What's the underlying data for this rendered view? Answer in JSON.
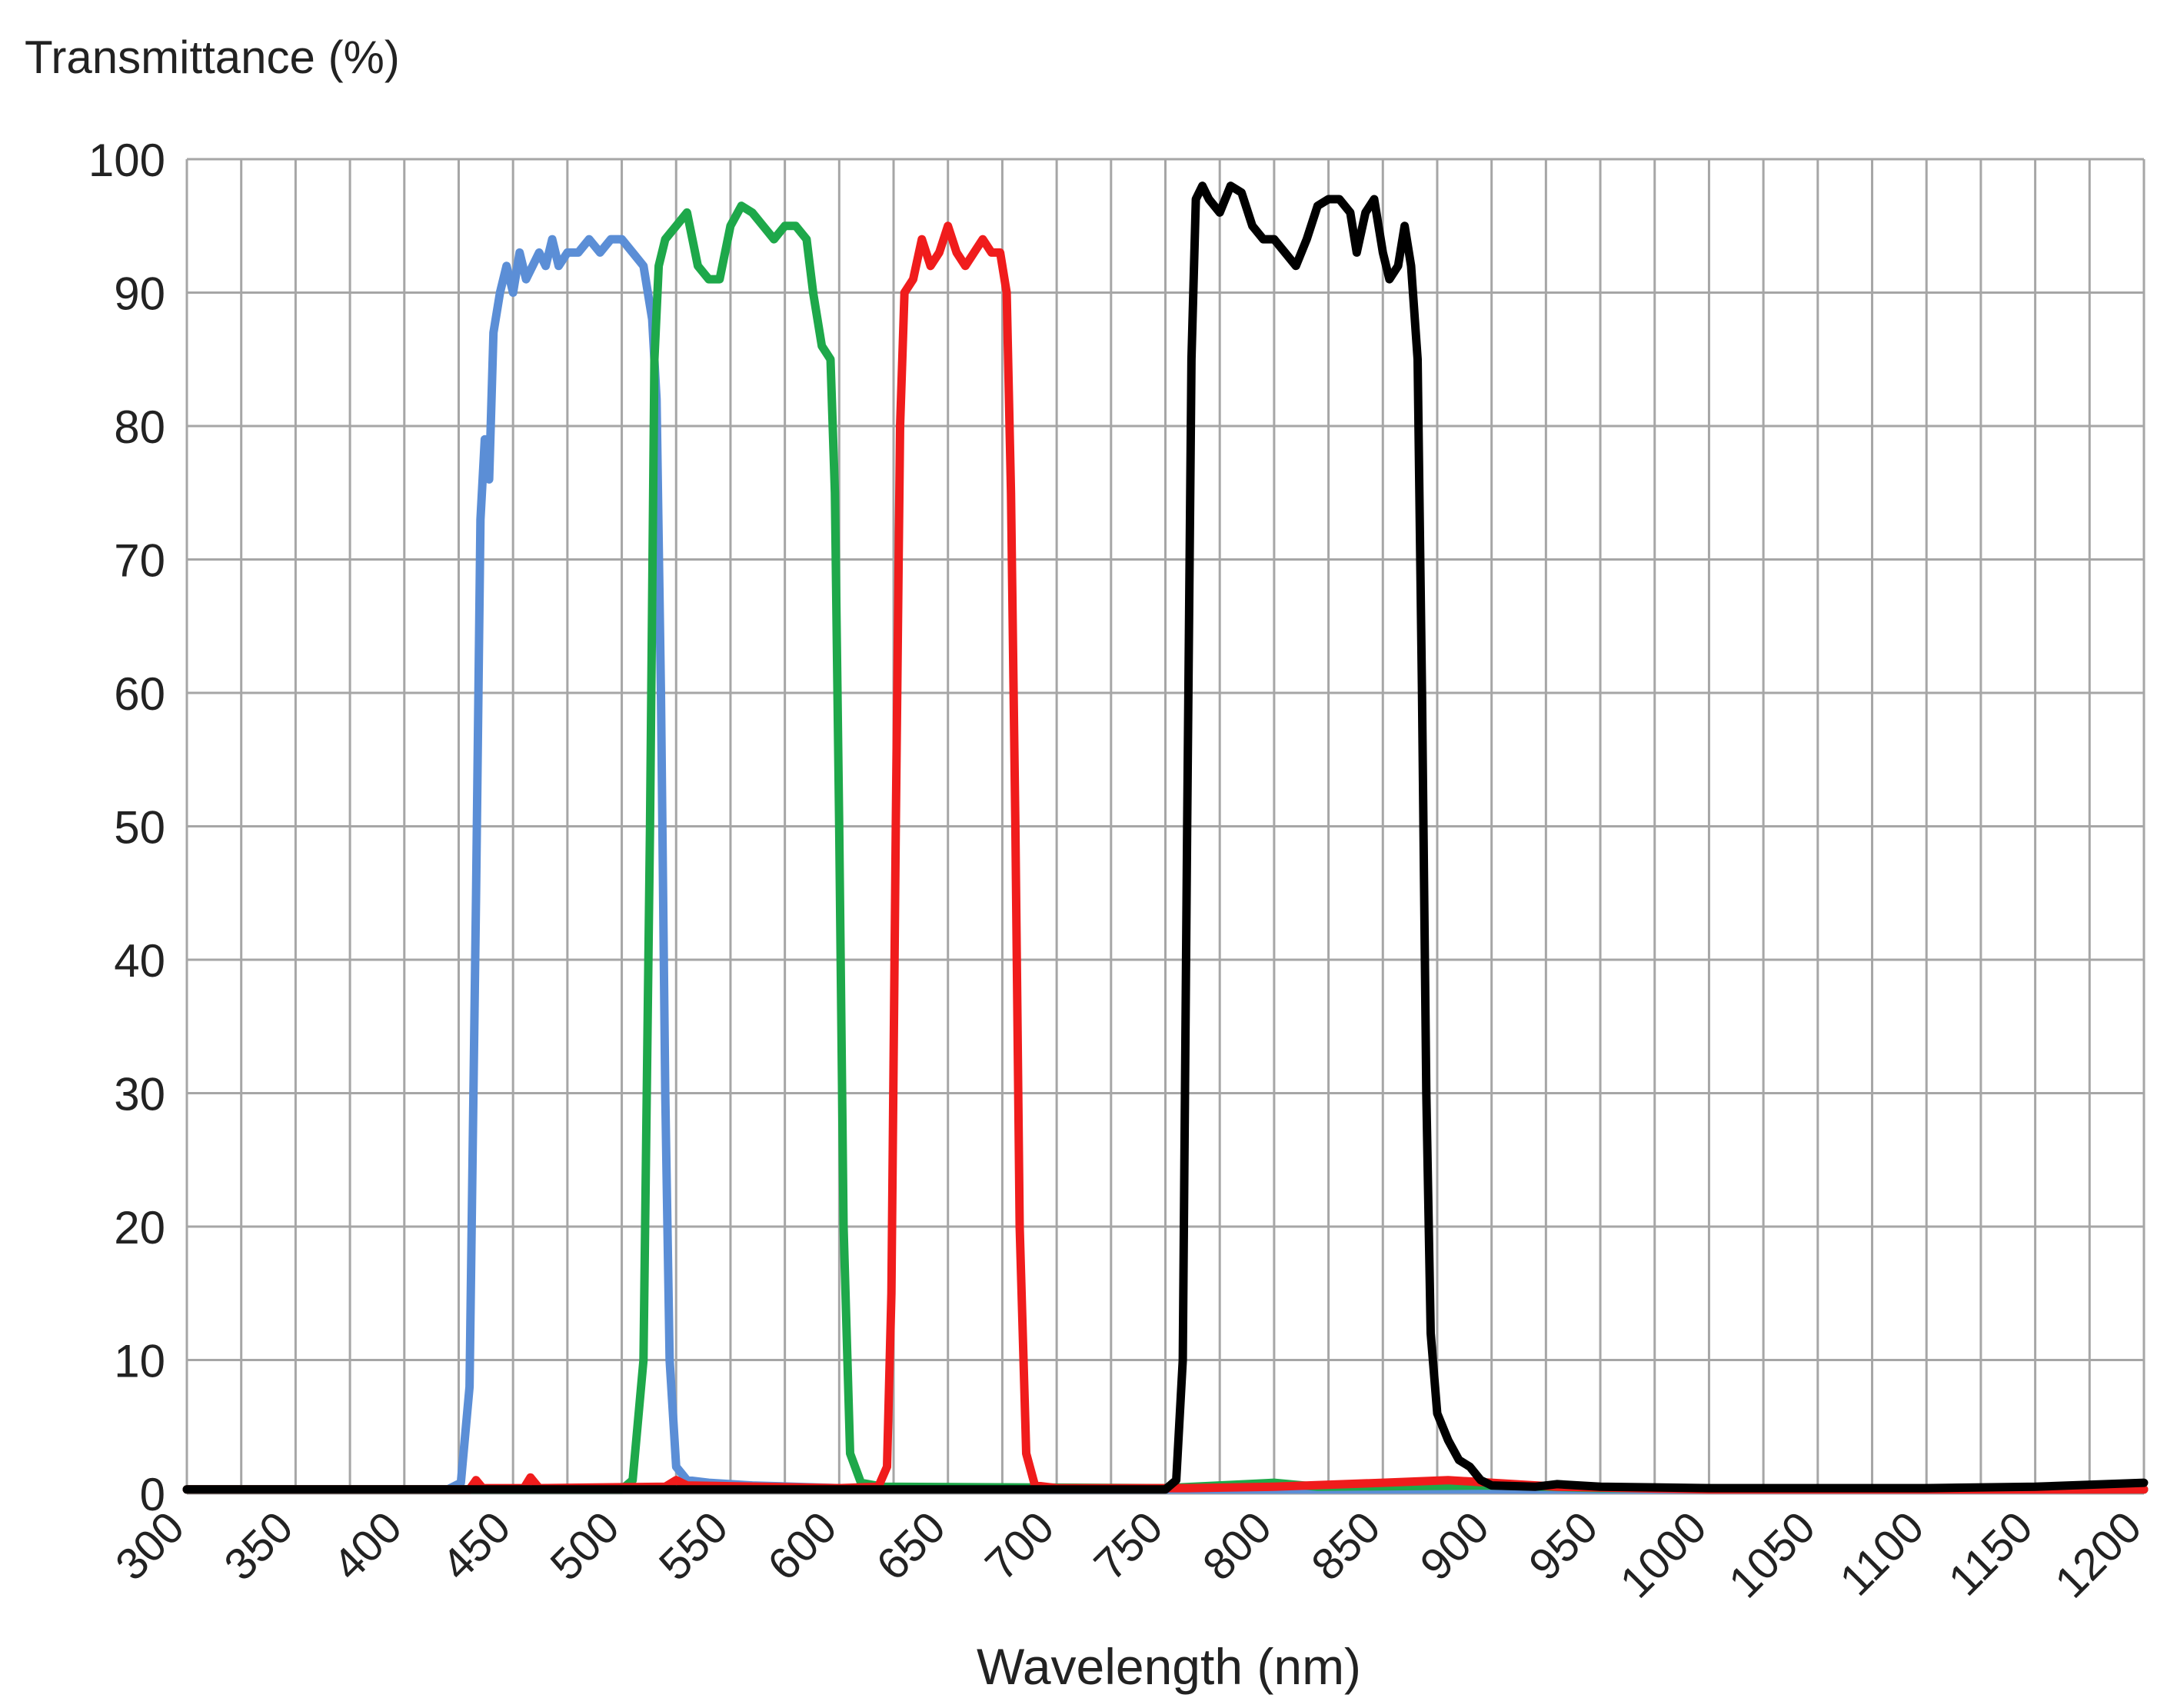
{
  "chart_data": {
    "type": "line",
    "title": "",
    "ylabel": "Transmittance (%)",
    "xlabel": "Wavelength (nm)",
    "xlim": [
      300,
      1200
    ],
    "ylim": [
      0,
      100
    ],
    "x_ticks": [
      300,
      350,
      400,
      450,
      500,
      550,
      600,
      650,
      700,
      750,
      800,
      850,
      900,
      950,
      1000,
      1050,
      1100,
      1150,
      1200
    ],
    "y_ticks": [
      0,
      10,
      20,
      30,
      40,
      50,
      60,
      70,
      80,
      90,
      100
    ],
    "grid": true,
    "legend": "none",
    "series": [
      {
        "color": "#5b8ed6",
        "points": [
          [
            300,
            0.3
          ],
          [
            420,
            0.3
          ],
          [
            426,
            0.8
          ],
          [
            430,
            8
          ],
          [
            433,
            45
          ],
          [
            435,
            73
          ],
          [
            437,
            79
          ],
          [
            439,
            76
          ],
          [
            441,
            87
          ],
          [
            444,
            90
          ],
          [
            447,
            92
          ],
          [
            450,
            90
          ],
          [
            453,
            93
          ],
          [
            456,
            91
          ],
          [
            459,
            92
          ],
          [
            462,
            93
          ],
          [
            465,
            92
          ],
          [
            468,
            94
          ],
          [
            471,
            92
          ],
          [
            475,
            93
          ],
          [
            480,
            93
          ],
          [
            485,
            94
          ],
          [
            490,
            93
          ],
          [
            495,
            94
          ],
          [
            500,
            94
          ],
          [
            505,
            93
          ],
          [
            510,
            92
          ],
          [
            514,
            88
          ],
          [
            516,
            82
          ],
          [
            518,
            60
          ],
          [
            520,
            30
          ],
          [
            522,
            10
          ],
          [
            525,
            2
          ],
          [
            530,
            1
          ],
          [
            540,
            0.8
          ],
          [
            560,
            0.6
          ],
          [
            600,
            0.4
          ],
          [
            700,
            0.3
          ],
          [
            1200,
            0.3
          ]
        ]
      },
      {
        "color": "#1ea84a",
        "points": [
          [
            300,
            0.3
          ],
          [
            500,
            0.3
          ],
          [
            505,
            1
          ],
          [
            510,
            10
          ],
          [
            513,
            50
          ],
          [
            515,
            85
          ],
          [
            517,
            92
          ],
          [
            520,
            94
          ],
          [
            525,
            95
          ],
          [
            530,
            96
          ],
          [
            535,
            92
          ],
          [
            540,
            91
          ],
          [
            545,
            91
          ],
          [
            550,
            95
          ],
          [
            555,
            96.5
          ],
          [
            560,
            96
          ],
          [
            565,
            95
          ],
          [
            570,
            94
          ],
          [
            575,
            95
          ],
          [
            580,
            95
          ],
          [
            585,
            94
          ],
          [
            588,
            90
          ],
          [
            592,
            86
          ],
          [
            596,
            85
          ],
          [
            598,
            75
          ],
          [
            600,
            50
          ],
          [
            602,
            20
          ],
          [
            605,
            3
          ],
          [
            610,
            0.8
          ],
          [
            620,
            0.5
          ],
          [
            750,
            0.4
          ],
          [
            800,
            0.8
          ],
          [
            820,
            0.5
          ],
          [
            900,
            0.6
          ],
          [
            950,
            0.4
          ],
          [
            1200,
            0.3
          ]
        ]
      },
      {
        "color": "#f01c1c",
        "points": [
          [
            300,
            0.3
          ],
          [
            430,
            0.3
          ],
          [
            433,
            1
          ],
          [
            436,
            0.4
          ],
          [
            455,
            0.4
          ],
          [
            458,
            1.2
          ],
          [
            462,
            0.4
          ],
          [
            520,
            0.5
          ],
          [
            525,
            1
          ],
          [
            530,
            0.6
          ],
          [
            600,
            0.4
          ],
          [
            618,
            0.5
          ],
          [
            622,
            2
          ],
          [
            624,
            15
          ],
          [
            626,
            50
          ],
          [
            628,
            80
          ],
          [
            630,
            90
          ],
          [
            634,
            91
          ],
          [
            638,
            94
          ],
          [
            642,
            92
          ],
          [
            646,
            93
          ],
          [
            650,
            95
          ],
          [
            654,
            93
          ],
          [
            658,
            92
          ],
          [
            662,
            93
          ],
          [
            666,
            94
          ],
          [
            670,
            93
          ],
          [
            674,
            93
          ],
          [
            677,
            90
          ],
          [
            679,
            75
          ],
          [
            681,
            50
          ],
          [
            683,
            20
          ],
          [
            686,
            3
          ],
          [
            690,
            0.6
          ],
          [
            700,
            0.4
          ],
          [
            760,
            0.4
          ],
          [
            800,
            0.5
          ],
          [
            850,
            0.8
          ],
          [
            880,
            1
          ],
          [
            900,
            0.8
          ],
          [
            930,
            0.5
          ],
          [
            1000,
            0.3
          ],
          [
            1200,
            0.3
          ]
        ]
      },
      {
        "color": "#000000",
        "points": [
          [
            300,
            0.3
          ],
          [
            750,
            0.3
          ],
          [
            755,
            1
          ],
          [
            758,
            10
          ],
          [
            760,
            50
          ],
          [
            762,
            85
          ],
          [
            764,
            97
          ],
          [
            767,
            98
          ],
          [
            770,
            97
          ],
          [
            775,
            96
          ],
          [
            780,
            98
          ],
          [
            785,
            97.5
          ],
          [
            790,
            95
          ],
          [
            795,
            94
          ],
          [
            800,
            94
          ],
          [
            805,
            93
          ],
          [
            810,
            92
          ],
          [
            815,
            94
          ],
          [
            820,
            96.5
          ],
          [
            825,
            97
          ],
          [
            830,
            97
          ],
          [
            835,
            96
          ],
          [
            838,
            93
          ],
          [
            842,
            96
          ],
          [
            846,
            97
          ],
          [
            850,
            93
          ],
          [
            853,
            91
          ],
          [
            857,
            92
          ],
          [
            860,
            95
          ],
          [
            863,
            92
          ],
          [
            866,
            85
          ],
          [
            868,
            60
          ],
          [
            870,
            30
          ],
          [
            872,
            12
          ],
          [
            875,
            6
          ],
          [
            880,
            4
          ],
          [
            885,
            2.5
          ],
          [
            890,
            2
          ],
          [
            895,
            1
          ],
          [
            900,
            0.6
          ],
          [
            920,
            0.5
          ],
          [
            930,
            0.7
          ],
          [
            950,
            0.5
          ],
          [
            1000,
            0.4
          ],
          [
            1100,
            0.4
          ],
          [
            1150,
            0.5
          ],
          [
            1200,
            0.8
          ]
        ]
      }
    ]
  }
}
